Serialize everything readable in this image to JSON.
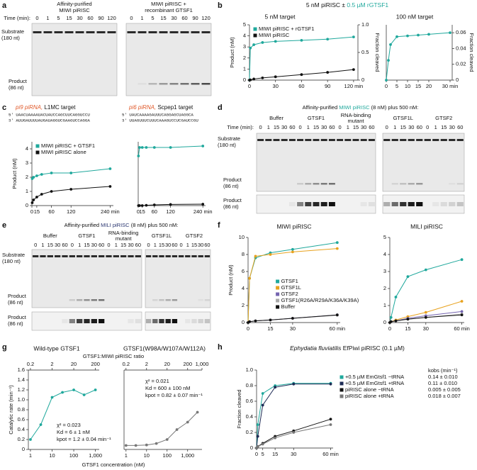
{
  "panel_a": {
    "label": "a",
    "gel1_title": [
      "Affinity-purified",
      "MIWI piRISC"
    ],
    "gel2_title": [
      "MIWI piRISC +",
      "recombinant GTSF1"
    ],
    "gel2_color": "#1fa89c",
    "time_label": "Time (min):",
    "lanes": [
      "0",
      "1",
      "5",
      "15",
      "30",
      "60",
      "90",
      "120"
    ],
    "substrate": [
      "Substrate",
      "(180 nt)"
    ],
    "product": [
      "Product",
      "(86 nt)"
    ]
  },
  "panel_b": {
    "label": "b",
    "title": [
      "5 nM piRISC ± ",
      "0.5 µM rGTSF1"
    ],
    "title_colors": [
      "#111111",
      "#1fa89c"
    ],
    "charts": [
      {
        "type": "line",
        "title": "5 nM target",
        "ylabel": "Product (nM)",
        "y2label": "Fraction cleaved",
        "xlim": [
          0,
          125
        ],
        "xticks": [
          0,
          30,
          60,
          90,
          {
            "value": 120,
            "label": "120 min"
          }
        ],
        "ylim": [
          0,
          5
        ],
        "yticks": [
          0,
          1,
          2,
          3,
          4,
          5
        ],
        "y2lim": [
          0,
          1
        ],
        "y2ticks": [
          0,
          0.5,
          {
            "value": 1,
            "label": "1.0"
          }
        ],
        "legend": "upper left",
        "series": [
          {
            "name": "MIWI piRISC + rGTSF1",
            "color": "#1fa89c",
            "x": [
              0,
              1,
              5,
              15,
              30,
              60,
              90,
              120
            ],
            "values": [
              0,
              2.9,
              3.2,
              3.4,
              3.5,
              3.6,
              3.7,
              3.9
            ]
          },
          {
            "name": "MIWI piRISC",
            "color": "#111111",
            "x": [
              0,
              1,
              5,
              15,
              30,
              60,
              90,
              120
            ],
            "values": [
              0,
              0.02,
              0.1,
              0.2,
              0.3,
              0.5,
              0.7,
              0.95
            ]
          }
        ]
      },
      {
        "type": "line",
        "title": "100 nM target",
        "y2label": "Fraction cleaved",
        "xlim": [
          0,
          31
        ],
        "xticks": [
          0,
          5,
          10,
          15,
          20,
          {
            "value": 30,
            "label": "30 min"
          }
        ],
        "y2lim": [
          0,
          0.07
        ],
        "y2ticks": [
          0,
          0.02,
          0.04,
          0.06
        ],
        "series": [
          {
            "color": "#1fa89c",
            "axis": "y2",
            "x": [
              0,
              1,
              2,
              5,
              10,
              15,
              20,
              30
            ],
            "values": [
              0,
              0.025,
              0.045,
              0.055,
              0.056,
              0.057,
              0.058,
              0.06
            ]
          }
        ]
      }
    ]
  },
  "panel_c": {
    "label": "c",
    "seq_color": "#e05a2b",
    "targets": [
      {
        "pirna": "pi9 piRNA, ",
        "target": "L1MC target",
        "seq_top": "5′ UAACUAAAAUACUAUCCAGCUUCAGGUCCU",
        "seq_bottom": "3′ AUUGAUUUUAUGAUAGGUCGAAGUCCAGGA"
      },
      {
        "pirna": "pi6 piRNA, ",
        "target": "Scpep1 target",
        "seq_top": "5′ UAUCAAAAGAUUUCAGGAGCUAGGCA",
        "seq_bottom": "3′ UUAGUUUCUUUCAAAGUCCUCGAUCCGU"
      }
    ],
    "charts": [
      {
        "type": "line",
        "ylabel": "Product (nM)",
        "xlim": [
          0,
          250
        ],
        "xticks": [
          0,
          15,
          60,
          120,
          {
            "value": 240,
            "label": "240 min"
          }
        ],
        "ylim": [
          0,
          4.5
        ],
        "yticks": [
          0,
          1,
          2,
          3,
          4
        ],
        "legend": "upper left",
        "series": [
          {
            "name": "MIWI piRISC + GTSF1",
            "color": "#1fa89c",
            "x": [
              1,
              5,
              15,
              30,
              60,
              120,
              240
            ],
            "values": [
              1.9,
              2.0,
              2.1,
              2.2,
              2.3,
              2.3,
              2.6
            ]
          },
          {
            "name": "MIWI piRISC alone",
            "color": "#111111",
            "x": [
              1,
              5,
              15,
              30,
              60,
              120,
              240
            ],
            "values": [
              0.2,
              0.4,
              0.6,
              0.8,
              1.0,
              1.15,
              1.35
            ]
          }
        ]
      },
      {
        "type": "line",
        "xlim": [
          0,
          250
        ],
        "xticks": [
          0,
          15,
          60,
          120,
          {
            "value": 240,
            "label": "240 min"
          }
        ],
        "ylim": [
          0,
          4.5
        ],
        "series": [
          {
            "color": "#1fa89c",
            "x": [
              1,
              5,
              15,
              30,
              60,
              120,
              240
            ],
            "values": [
              3.5,
              4.1,
              4.1,
              4.1,
              4.1,
              4.1,
              4.2
            ]
          },
          {
            "color": "#111111",
            "x": [
              1,
              5,
              15,
              30,
              60,
              120,
              240
            ],
            "values": [
              0,
              0,
              0,
              0.02,
              0.05,
              0.08,
              0.1
            ]
          }
        ]
      }
    ]
  },
  "panel_d": {
    "label": "d",
    "title": [
      "Affinity-purified ",
      "MIWI piRISC",
      " (8 nM) plus 500 nM:"
    ],
    "title_colors": [
      "#111111",
      "#1fa89c",
      "#111111"
    ],
    "groups": [
      [
        "Buffer"
      ],
      [
        "GTSF1"
      ],
      [
        "RNA-binding",
        "mutant"
      ],
      [
        "GTSF1L"
      ],
      [
        "GTSF2"
      ]
    ],
    "group_colors": [
      "#111111",
      "#1fa89c",
      "#b0b0b0",
      "#e8a21e",
      "#7464b0"
    ],
    "time_label": "Time (min):",
    "lanes": [
      "0",
      "1",
      "15",
      "30",
      "60"
    ],
    "substrate": [
      "Substrate",
      "(180 nt)"
    ],
    "product": [
      "Product",
      "(86 nt)"
    ]
  },
  "panel_e": {
    "label": "e",
    "title": [
      "Affinity-purified ",
      "MILI piRISC",
      " (8 nM) plus 500 nM:"
    ],
    "title_colors": [
      "#111111",
      "#2a3670",
      "#111111"
    ],
    "groups": [
      [
        "Buffer"
      ],
      [
        "GTSF1"
      ],
      [
        "RNA-binding",
        "mutant"
      ],
      [
        "GTSF1L"
      ],
      [
        "GTSF2"
      ]
    ],
    "group_colors": [
      "#111111",
      "#1fa89c",
      "#b0b0b0",
      "#e8a21e",
      "#7464b0"
    ],
    "lanes": [
      "0",
      "1",
      "15",
      "30",
      "60"
    ],
    "substrate": [
      "Substrate",
      "(180 nt)"
    ],
    "product": [
      "Product",
      "(86 nt)"
    ]
  },
  "panel_f": {
    "label": "f",
    "charts": [
      {
        "type": "line",
        "title": "MIWI piRISC",
        "title_color": "#1fa89c",
        "ylabel": "Product (nM)",
        "xlim": [
          0,
          62
        ],
        "xticks": [
          0,
          15,
          30,
          {
            "value": 60,
            "label": "60 min"
          }
        ],
        "ylim": [
          0,
          10
        ],
        "yticks": [
          0,
          2,
          4,
          6,
          8,
          10
        ],
        "legend": "center right",
        "series": [
          {
            "name": "GTSF1",
            "color": "#1fa89c",
            "x": [
              0,
              1,
              5,
              15,
              30,
              60
            ],
            "values": [
              0,
              5.2,
              7.6,
              8.2,
              8.6,
              9.4
            ]
          },
          {
            "name": "GTSF1L",
            "color": "#e8a21e",
            "x": [
              0,
              1,
              5,
              15,
              30,
              60
            ],
            "values": [
              0,
              5.2,
              7.8,
              8.0,
              8.3,
              8.7
            ]
          },
          {
            "name": "GTSF2",
            "color": "#7464b0",
            "x": [
              0,
              1,
              5,
              15,
              30,
              60
            ],
            "values": [
              0,
              0.1,
              0.2,
              0.3,
              0.5,
              0.9
            ]
          },
          {
            "name": "GTSF1(R26A/R29A/K36A/K39A)",
            "color": "#a8a8a8",
            "x": [
              0,
              1,
              5,
              15,
              30,
              60
            ],
            "values": [
              0,
              0.1,
              0.2,
              0.3,
              0.5,
              0.85
            ]
          },
          {
            "name": "Buffer",
            "color": "#111111",
            "x": [
              0,
              1,
              5,
              15,
              30,
              60
            ],
            "values": [
              0,
              0.1,
              0.2,
              0.3,
              0.5,
              0.9
            ]
          }
        ]
      },
      {
        "type": "line",
        "title": "MILI piRISC",
        "title_color": "#2a3670",
        "xlim": [
          0,
          62
        ],
        "xticks": [
          0,
          15,
          30,
          {
            "value": 60,
            "label": "60 min"
          }
        ],
        "ylim": [
          0,
          5
        ],
        "yticks": [
          0,
          1,
          2,
          3,
          4,
          5
        ],
        "series": [
          {
            "color": "#1fa89c",
            "x": [
              0,
              1,
              5,
              15,
              30,
              60
            ],
            "values": [
              0,
              0.3,
              1.5,
              2.7,
              3.1,
              3.7
            ]
          },
          {
            "color": "#e8a21e",
            "x": [
              0,
              1,
              5,
              15,
              30,
              60
            ],
            "values": [
              0,
              0.05,
              0.15,
              0.35,
              0.6,
              1.25
            ]
          },
          {
            "color": "#7464b0",
            "x": [
              0,
              1,
              5,
              15,
              30,
              60
            ],
            "values": [
              0,
              0.05,
              0.1,
              0.25,
              0.4,
              0.65
            ]
          },
          {
            "color": "#a8a8a8",
            "x": [
              0,
              1,
              5,
              15,
              30,
              60
            ],
            "values": [
              0,
              0.05,
              0.1,
              0.2,
              0.3,
              0.5
            ]
          },
          {
            "color": "#111111",
            "x": [
              0,
              1,
              5,
              15,
              30,
              60
            ],
            "values": [
              0,
              0.05,
              0.1,
              0.2,
              0.3,
              0.45
            ]
          }
        ]
      }
    ]
  },
  "panel_g": {
    "label": "g",
    "top_label": "GTSF1:MIWI piRISC ratio",
    "x_label": "GTSF1 concentration (nM)",
    "charts": [
      {
        "type": "line",
        "log_x": true,
        "title": "Wild-type GTSF1",
        "title_color": "#1fa89c",
        "ylabel": "Catalytic rate (min⁻¹)",
        "xlim": [
          0.8,
          1500
        ],
        "xticks": [
          1,
          10,
          100,
          {
            "value": 1000,
            "label": "1,000"
          }
        ],
        "x2lim": [
          0.16,
          300
        ],
        "x2ticks": [
          0.2,
          2,
          20,
          200
        ],
        "ylim": [
          0,
          1.6
        ],
        "yticks": [
          0,
          0.2,
          0.4,
          0.6,
          0.8,
          {
            "value": 1,
            "label": "1.0"
          },
          1.2,
          1.4,
          1.6
        ],
        "annotations": [
          "χ² = 0.023",
          "Kd = 6 ± 1 nM",
          "kpot = 1.2 ± 0.04 min⁻¹"
        ],
        "series": [
          {
            "color": "#1fa89c",
            "x": [
              1,
              3,
              10,
              30,
              100,
              300,
              1000
            ],
            "values": [
              0.2,
              0.5,
              1.05,
              1.15,
              1.2,
              1.1,
              1.2
            ]
          }
        ]
      },
      {
        "type": "line",
        "log_x": true,
        "title": "GTSF1(W98A/W107A/W112A)",
        "title_color": "#777777",
        "xlim": [
          0.8,
          5000
        ],
        "xticks": [
          1,
          10,
          100,
          {
            "value": 1000,
            "label": "1,000"
          }
        ],
        "x2lim": [
          0.16,
          1000
        ],
        "x2ticks": [
          0.2,
          2,
          20,
          200,
          {
            "value": 1000,
            "label": "1,000"
          }
        ],
        "ylim": [
          0,
          1.6
        ],
        "annotations": [
          "χ² = 0.021",
          "Kd = 600 ± 100 nM",
          "kpot = 0.82 ± 0.07 min⁻¹"
        ],
        "series": [
          {
            "color": "#777777",
            "x": [
              1,
              3,
              10,
              30,
              100,
              300,
              1000,
              3000
            ],
            "values": [
              0.08,
              0.08,
              0.09,
              0.12,
              0.2,
              0.4,
              0.55,
              0.75
            ]
          }
        ]
      }
    ]
  },
  "panel_h": {
    "label": "h",
    "title": [
      "Ephydatia fluviatilis",
      " EfPiwi piRISC (0.1 µM)"
    ],
    "chart": {
      "type": "line",
      "ylabel": "Fraction cleaved",
      "xlim": [
        0,
        62
      ],
      "xticks": [
        0,
        5,
        15,
        30,
        {
          "value": 60,
          "label": "60 min"
        }
      ],
      "ylim": [
        0,
        1
      ],
      "yticks": [
        0,
        0.2,
        0.4,
        0.6,
        0.8,
        {
          "value": 1,
          "label": "1.0"
        }
      ],
      "legend": "outside right",
      "legend_header": "kobs (min⁻¹)",
      "series": [
        {
          "name": "+0.5 µM EmGtsf1 −tRNA",
          "kobs": "0.14 ± 0.010",
          "color": "#1fa89c",
          "x": [
            0,
            1,
            5,
            15,
            30,
            60
          ],
          "values": [
            0,
            0.3,
            0.7,
            0.8,
            0.83,
            0.83
          ]
        },
        {
          "name": "+0.5 µM EmGtsf1 +tRNA",
          "kobs": "0.11 ± 0.010",
          "color": "#1d2b55",
          "x": [
            0,
            1,
            5,
            15,
            30,
            60
          ],
          "values": [
            0,
            0.15,
            0.55,
            0.78,
            0.82,
            0.82
          ]
        },
        {
          "name": "piRISC alone −tRNA",
          "kobs": "0.005 ± 0.005",
          "color": "#111111",
          "x": [
            0,
            1,
            5,
            15,
            30,
            60
          ],
          "values": [
            0,
            0.02,
            0.06,
            0.15,
            0.22,
            0.37
          ]
        },
        {
          "name": "piRISC alone +tRNA",
          "kobs": "0.018 ± 0.007",
          "color": "#777777",
          "x": [
            0,
            1,
            5,
            15,
            30,
            60
          ],
          "values": [
            0,
            0.02,
            0.05,
            0.13,
            0.2,
            0.3
          ]
        }
      ]
    }
  }
}
